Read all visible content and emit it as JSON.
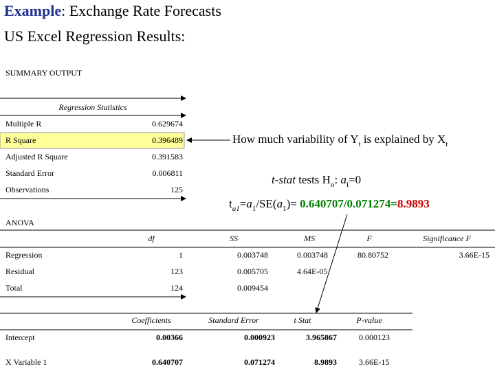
{
  "title": {
    "lead": "Example",
    "rest": ": Exchange Rate Forecasts"
  },
  "subtitle": "US Excel Regression Results:",
  "summary_label": "SUMMARY OUTPUT",
  "regression_statistics": {
    "title": "Regression Statistics",
    "rows": [
      [
        "Multiple R",
        "0.629674"
      ],
      [
        "R Square",
        "0.396489"
      ],
      [
        "Adjusted R Square",
        "0.391583"
      ],
      [
        "Standard Error",
        "0.006811"
      ],
      [
        "Observations",
        "125"
      ]
    ]
  },
  "annotations": {
    "variability": [
      "How much variability of Y",
      "t",
      " is explained by X",
      "t"
    ],
    "t_test": [
      "t-stat",
      " tests H",
      "o",
      ": ",
      "a",
      "i",
      "=0"
    ],
    "formula": [
      "t",
      "a1",
      "=",
      "a",
      "1",
      "/SE(",
      "a",
      "1",
      ")= ",
      "0.640707/0.071274=",
      "8.9893"
    ]
  },
  "anova": {
    "title": "ANOVA",
    "headers": [
      "df",
      "SS",
      "MS",
      "F",
      "Significance F"
    ],
    "rows": [
      [
        "Regression",
        "1",
        "0.003748",
        "0.003748",
        "80.80752",
        "3.66E-15"
      ],
      [
        "Residual",
        "123",
        "0.005705",
        "4.64E-05"
      ],
      [
        "Total",
        "124",
        "0.009454"
      ]
    ]
  },
  "coefficients": {
    "headers": [
      "Coefficients",
      "Standard Error",
      "t Stat",
      "P-value"
    ],
    "rows": [
      [
        "Intercept",
        "0.00366",
        "0.000923",
        "3.965867",
        "0.000123"
      ],
      [
        "X Variable 1",
        "0.640707",
        "0.071274",
        "8.9893",
        "3.66E-15"
      ]
    ]
  }
}
